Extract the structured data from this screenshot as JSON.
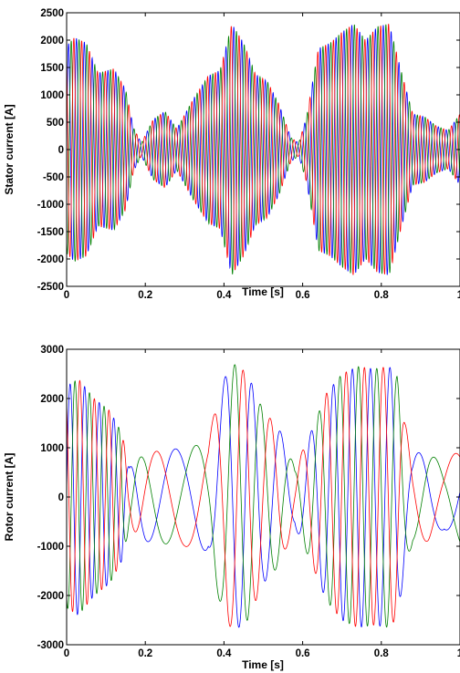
{
  "chart_data": [
    {
      "type": "line",
      "title": "",
      "xlabel": "Time [s]",
      "ylabel": "Stator current [A]",
      "xlim": [
        0,
        1
      ],
      "ylim": [
        -2500,
        2500
      ],
      "xticks": [
        0,
        0.2,
        0.4,
        0.6,
        0.8,
        1
      ],
      "xtick_labels": [
        "0",
        "0.2",
        "0.4",
        "0.6",
        "0.8",
        "1"
      ],
      "yticks": [
        -2500,
        -2000,
        -1500,
        -1000,
        -500,
        0,
        500,
        1000,
        1500,
        2000,
        2500
      ],
      "ytick_labels": [
        "-2500",
        "-2000",
        "-1500",
        "-1000",
        "-500",
        "0",
        "500",
        "1000",
        "1500",
        "2000",
        "2500"
      ],
      "grid": false,
      "legend": "none",
      "signal": {
        "kind": "amplitude_modulated_three_phase",
        "frequency_hz": 50
      },
      "envelope": {
        "x": [
          0,
          0.02,
          0.05,
          0.08,
          0.12,
          0.15,
          0.17,
          0.19,
          0.22,
          0.25,
          0.28,
          0.32,
          0.36,
          0.39,
          0.42,
          0.45,
          0.48,
          0.51,
          0.54,
          0.57,
          0.59,
          0.61,
          0.64,
          0.67,
          0.7,
          0.73,
          0.76,
          0.79,
          0.82,
          0.85,
          0.88,
          0.91,
          0.94,
          0.97,
          1.0
        ],
        "y": [
          1900,
          2050,
          1950,
          1400,
          1480,
          1100,
          400,
          120,
          550,
          700,
          380,
          900,
          1350,
          1450,
          2300,
          1950,
          1380,
          1250,
          830,
          220,
          120,
          600,
          1850,
          1950,
          2150,
          2300,
          2000,
          2250,
          2300,
          1450,
          650,
          600,
          430,
          350,
          650
        ]
      },
      "series": [
        {
          "name": "",
          "phase_deg": 0,
          "color": "#0000ff"
        },
        {
          "name": "",
          "phase_deg": 120,
          "color": "#008000"
        },
        {
          "name": "",
          "phase_deg": 240,
          "color": "#ff0000"
        }
      ]
    },
    {
      "type": "line",
      "title": "",
      "xlabel": "Time [s]",
      "ylabel": "Rotor current [A]",
      "xlim": [
        0,
        1
      ],
      "ylim": [
        -3000,
        3000
      ],
      "xticks": [
        0,
        0.2,
        0.4,
        0.6,
        0.8,
        1
      ],
      "xtick_labels": [
        "0",
        "0.2",
        "0.4",
        "0.6",
        "0.8",
        "1"
      ],
      "yticks": [
        -3000,
        -2000,
        -1000,
        0,
        1000,
        2000,
        3000
      ],
      "ytick_labels": [
        "-3000",
        "-2000",
        "-1000",
        "0",
        "1000",
        "2000",
        "3000"
      ],
      "grid": false,
      "legend": "none",
      "signal": {
        "kind": "three_phase_variable_frequency"
      },
      "frequency_profile": {
        "x": [
          0,
          0.14,
          0.16,
          0.2,
          0.3,
          0.36,
          0.4,
          0.44,
          0.5,
          0.56,
          0.6,
          0.64,
          0.7,
          0.76,
          0.84,
          0.88,
          1.0
        ],
        "y": [
          27,
          27,
          16,
          8,
          6,
          8,
          12,
          16,
          14,
          11,
          14,
          17,
          21,
          22,
          18,
          9,
          6
        ]
      },
      "envelope": {
        "x": [
          0,
          0.03,
          0.07,
          0.11,
          0.14,
          0.16,
          0.2,
          0.3,
          0.36,
          0.38,
          0.41,
          0.43,
          0.46,
          0.5,
          0.54,
          0.58,
          0.62,
          0.66,
          0.7,
          0.74,
          0.78,
          0.82,
          0.84,
          0.86,
          0.88,
          0.92,
          0.96,
          1.0
        ],
        "y": [
          2250,
          2400,
          2000,
          1750,
          1300,
          600,
          900,
          1000,
          1100,
          1900,
          2600,
          2700,
          2500,
          1750,
          1400,
          600,
          1300,
          2100,
          2500,
          2650,
          2600,
          2650,
          2450,
          1500,
          900,
          900,
          650,
          1000
        ]
      },
      "series": [
        {
          "name": "",
          "phase_deg": 0,
          "color": "#0000ff"
        },
        {
          "name": "",
          "phase_deg": 120,
          "color": "#008000"
        },
        {
          "name": "",
          "phase_deg": 240,
          "color": "#ff0000"
        }
      ]
    }
  ]
}
